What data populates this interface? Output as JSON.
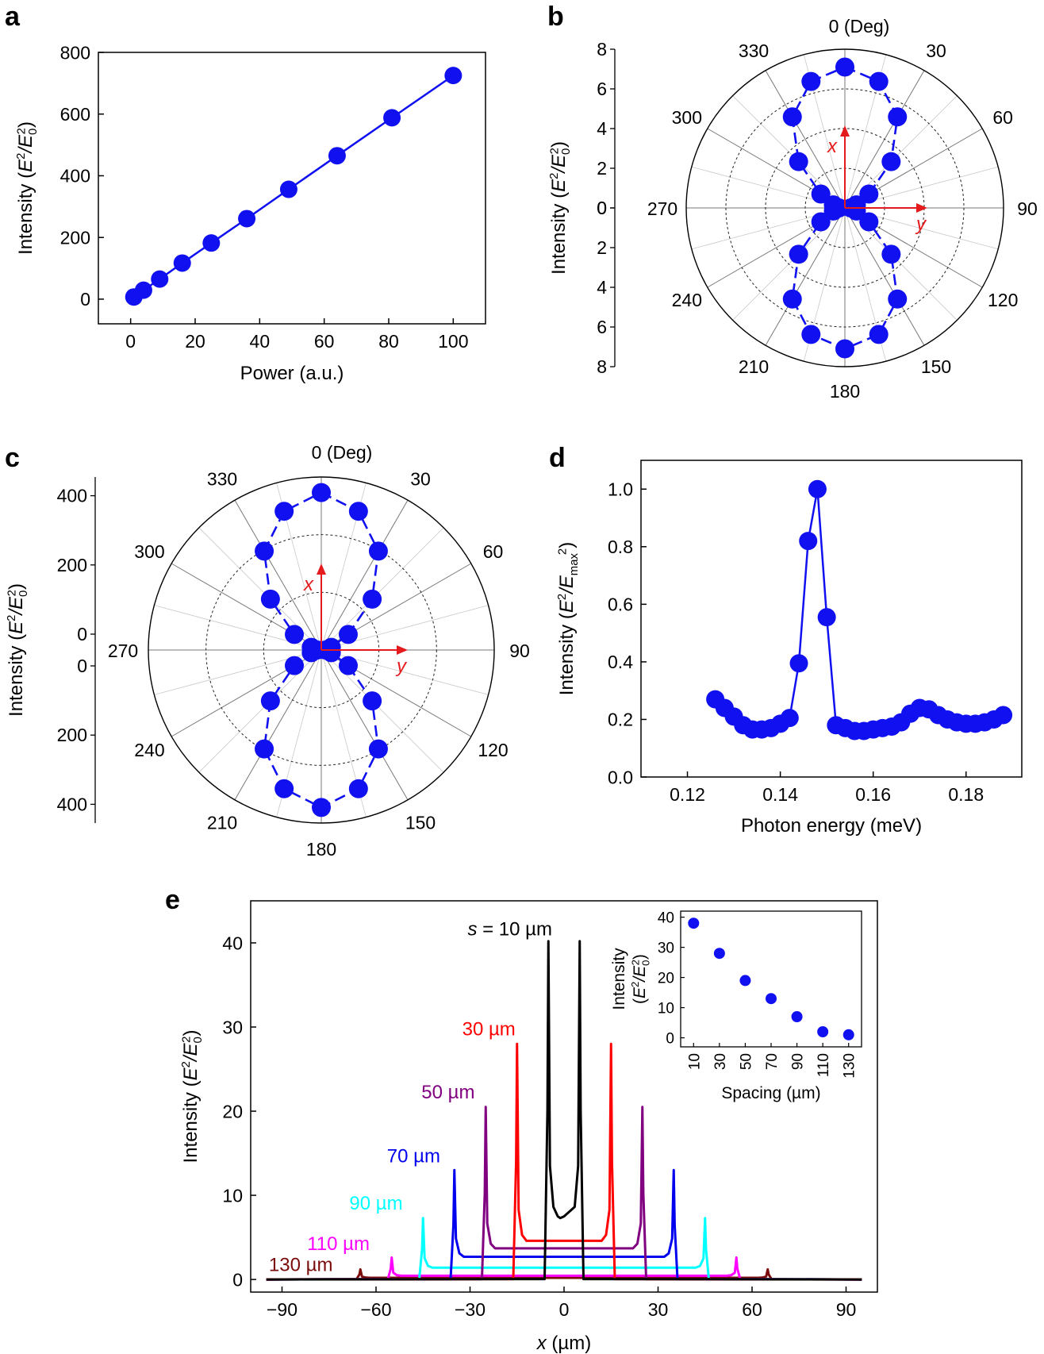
{
  "panel_labels": {
    "a": "a",
    "b": "b",
    "c": "c",
    "d": "d",
    "e": "e"
  },
  "colors": {
    "marker": "#1010f0",
    "axis": "#000000",
    "red_arrow": "#e41a1c",
    "grid": "#8a8a8a"
  },
  "chart_data": [
    {
      "panel": "a",
      "type": "line",
      "xlabel": "Power (a.u.)",
      "ylabel_main": "Intensity (",
      "ylabel_units": [
        "E",
        "2",
        "/E",
        "0",
        "2",
        ")"
      ],
      "xlim": [
        -10,
        110
      ],
      "ylim": [
        -80,
        800
      ],
      "xticks": [
        0,
        20,
        40,
        60,
        80,
        100
      ],
      "yticks": [
        0,
        200,
        400,
        600,
        800
      ],
      "x": [
        1,
        4,
        9,
        16,
        25,
        36,
        49,
        64,
        81,
        100
      ],
      "y": [
        7,
        29,
        65,
        117,
        182,
        261,
        356,
        465,
        588,
        725
      ]
    },
    {
      "panel": "b",
      "type": "scatter",
      "subtype": "polar",
      "angle_unit": "(Deg)",
      "angle_labels": [
        "0",
        "30",
        "60",
        "90",
        "120",
        "150",
        "180",
        "210",
        "240",
        "270",
        "300",
        "330"
      ],
      "rmax": 8,
      "radial_ticks_upper": [
        "8",
        "6",
        "4",
        "2",
        "0"
      ],
      "radial_ticks_lower": [
        "0",
        "2",
        "4",
        "6",
        "8"
      ],
      "ylabel_main": "Intensity (",
      "ylabel_units": [
        "E",
        "2",
        "/E",
        "0",
        "2",
        ")"
      ],
      "arrow_labels": {
        "x": "x",
        "y": "y"
      },
      "theta": [
        0,
        15,
        30,
        45,
        60,
        75,
        90,
        105,
        120,
        135,
        150,
        165,
        180,
        195,
        210,
        225,
        240,
        255,
        270,
        285,
        300,
        315,
        330,
        345
      ],
      "r": [
        7.1,
        6.6,
        5.3,
        3.3,
        1.4,
        0.6,
        0.3,
        0.6,
        1.4,
        3.3,
        5.3,
        6.6,
        7.1,
        6.6,
        5.3,
        3.3,
        1.4,
        0.6,
        0.3,
        0.6,
        1.4,
        3.3,
        5.3,
        6.6
      ]
    },
    {
      "panel": "c",
      "type": "scatter",
      "subtype": "polar",
      "angle_unit": "(Deg)",
      "angle_labels": [
        "0",
        "30",
        "60",
        "90",
        "120",
        "150",
        "180",
        "210",
        "240",
        "270",
        "300",
        "330"
      ],
      "rmax": 500,
      "radial_ticks_upper": [
        "400",
        "200",
        "0"
      ],
      "radial_ticks_lower": [
        "0",
        "200",
        "400"
      ],
      "ylabel_main": "Intensity (",
      "ylabel_units": [
        "E",
        "2",
        "/E",
        "0",
        "2",
        ")"
      ],
      "arrow_labels": {
        "x": "x",
        "y": "y"
      },
      "theta": [
        0,
        15,
        30,
        45,
        60,
        75,
        90,
        105,
        120,
        135,
        150,
        165,
        180,
        195,
        210,
        225,
        240,
        255,
        270,
        285,
        300,
        315,
        330,
        345
      ],
      "r": [
        455,
        415,
        330,
        208,
        90,
        30,
        12,
        30,
        90,
        208,
        330,
        415,
        455,
        415,
        330,
        208,
        90,
        30,
        12,
        30,
        90,
        208,
        330,
        415
      ]
    },
    {
      "panel": "d",
      "type": "line",
      "xlabel": "Photon energy (meV)",
      "ylabel_main": "Intensity (",
      "ylabel_units": [
        "E",
        "2",
        "/E",
        "max",
        "2",
        ")"
      ],
      "xlim": [
        0.11,
        0.192
      ],
      "ylim": [
        0,
        1.1
      ],
      "xticks": [
        "0.12",
        "0.14",
        "0.16",
        "0.18"
      ],
      "yticks": [
        "0.0",
        "0.2",
        "0.4",
        "0.6",
        "0.8",
        "1.0"
      ],
      "x": [
        0.126,
        0.128,
        0.13,
        0.132,
        0.134,
        0.136,
        0.138,
        0.14,
        0.142,
        0.144,
        0.146,
        0.148,
        0.15,
        0.152,
        0.154,
        0.156,
        0.158,
        0.16,
        0.162,
        0.164,
        0.166,
        0.168,
        0.17,
        0.172,
        0.174,
        0.176,
        0.178,
        0.18,
        0.182,
        0.184,
        0.186,
        0.188
      ],
      "y": [
        0.27,
        0.24,
        0.21,
        0.18,
        0.165,
        0.165,
        0.17,
        0.185,
        0.205,
        0.395,
        0.82,
        1.0,
        0.555,
        0.18,
        0.17,
        0.16,
        0.16,
        0.165,
        0.17,
        0.175,
        0.19,
        0.22,
        0.24,
        0.235,
        0.215,
        0.2,
        0.19,
        0.185,
        0.185,
        0.19,
        0.2,
        0.215
      ]
    },
    {
      "panel": "e",
      "type": "line",
      "xlabel_var": "x",
      "xlabel_unit": " (µm)",
      "ylabel_main": "Intensity (",
      "ylabel_units": [
        "E",
        "2",
        "/E",
        "0",
        "2",
        ")"
      ],
      "xlim": [
        -100,
        100
      ],
      "ylim": [
        -1.5,
        45
      ],
      "xticks": [
        "-90",
        "-60",
        "-30",
        "0",
        "30",
        "60",
        "90"
      ],
      "yticks": [
        "0",
        "10",
        "20",
        "30",
        "40"
      ],
      "series": [
        {
          "name": "130 µm",
          "spacing": 130,
          "peak": 1.2,
          "floor": 0.2,
          "color": "#7b0c0c"
        },
        {
          "name": "110 µm",
          "spacing": 110,
          "peak": 2.6,
          "floor": 0.45,
          "color": "#ff00ff"
        },
        {
          "name": "90 µm",
          "spacing": 90,
          "peak": 7.3,
          "floor": 1.4,
          "color": "#00ffff"
        },
        {
          "name": "70 µm",
          "spacing": 70,
          "peak": 13.0,
          "floor": 2.7,
          "color": "#0000ee"
        },
        {
          "name": "50 µm",
          "spacing": 50,
          "peak": 20.5,
          "floor": 3.7,
          "color": "#800080"
        },
        {
          "name": "30 µm",
          "spacing": 30,
          "peak": 28.0,
          "floor": 4.6,
          "color": "#ff0000"
        },
        {
          "name": "s = 10 µm",
          "spacing": 10,
          "peak": 40.2,
          "floor": 7.5,
          "color": "#000000"
        }
      ],
      "labels": {
        "s10_var": "s",
        "s10_rest": " = 10 µm"
      },
      "inset": {
        "type": "scatter",
        "xlabel": "Spacing (µm)",
        "ylabel_top": "Intensity",
        "ylabel_units": [
          "(E",
          "2",
          "/E",
          "0",
          "2",
          ")"
        ],
        "xlim": [
          0,
          140
        ],
        "ylim": [
          -3,
          42
        ],
        "xticks": [
          "10",
          "30",
          "50",
          "70",
          "90",
          "110",
          "130"
        ],
        "yticks": [
          "0",
          "10",
          "20",
          "30",
          "40"
        ],
        "x": [
          10,
          30,
          50,
          70,
          90,
          110,
          130
        ],
        "y": [
          38,
          28,
          19,
          13,
          7,
          2,
          1
        ]
      }
    }
  ]
}
